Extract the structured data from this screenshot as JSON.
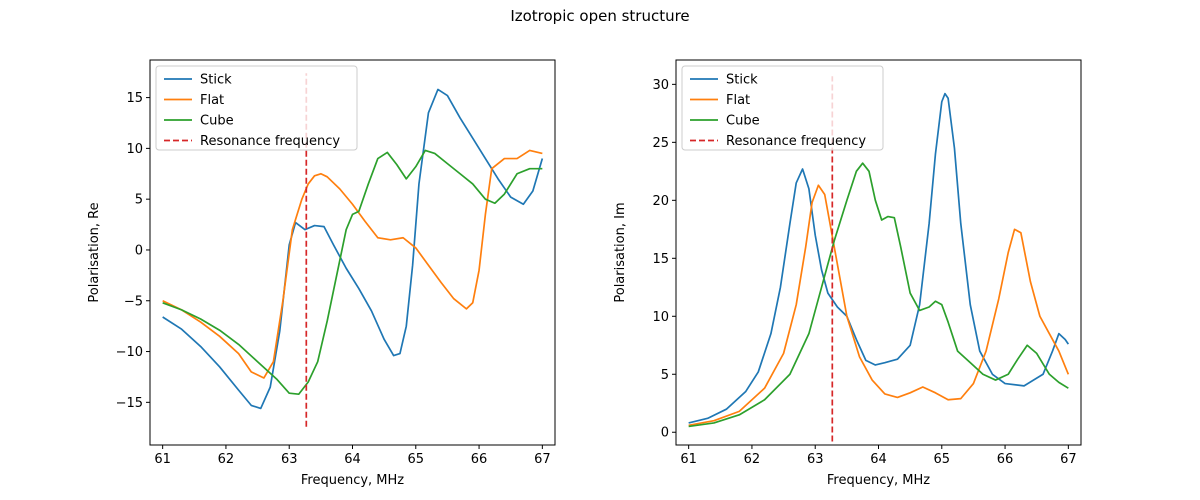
{
  "figure": {
    "title": "Izotropic open structure"
  },
  "chart_data": [
    {
      "type": "line",
      "xlabel": "Frequency, MHz",
      "ylabel": "Polarisation, Re",
      "xlim": [
        60.8,
        67.2
      ],
      "ylim": [
        -19.2,
        18.7
      ],
      "xticks": [
        61,
        62,
        63,
        64,
        65,
        66,
        67
      ],
      "yticks": [
        -15,
        -10,
        -5,
        0,
        5,
        10,
        15
      ],
      "grid": false,
      "legend": "top-left",
      "series": [
        {
          "name": "Stick",
          "color": "#1f77b4",
          "x": [
            61.0,
            61.3,
            61.6,
            61.9,
            62.2,
            62.4,
            62.55,
            62.7,
            62.85,
            63.0,
            63.1,
            63.25,
            63.4,
            63.55,
            63.7,
            63.9,
            64.1,
            64.3,
            64.5,
            64.65,
            64.75,
            64.85,
            64.95,
            65.05,
            65.2,
            65.35,
            65.5,
            65.7,
            65.9,
            66.1,
            66.3,
            66.5,
            66.7,
            66.85,
            67.0
          ],
          "y": [
            -6.6,
            -7.8,
            -9.5,
            -11.5,
            -13.8,
            -15.3,
            -15.6,
            -13.5,
            -8.0,
            0.5,
            2.7,
            2.0,
            2.4,
            2.3,
            0.5,
            -1.8,
            -3.8,
            -6.0,
            -8.8,
            -10.4,
            -10.2,
            -7.5,
            -1.5,
            6.5,
            13.5,
            15.8,
            15.2,
            13.0,
            11.0,
            9.0,
            7.0,
            5.2,
            4.5,
            5.8,
            9.0
          ]
        },
        {
          "name": "Flat",
          "color": "#ff7f0e",
          "x": [
            61.0,
            61.3,
            61.6,
            61.9,
            62.2,
            62.4,
            62.6,
            62.75,
            62.9,
            63.05,
            63.2,
            63.3,
            63.4,
            63.5,
            63.6,
            63.8,
            64.0,
            64.2,
            64.4,
            64.6,
            64.8,
            65.0,
            65.2,
            65.4,
            65.6,
            65.8,
            65.9,
            66.0,
            66.1,
            66.2,
            66.4,
            66.6,
            66.8,
            67.0
          ],
          "y": [
            -5.0,
            -5.9,
            -7.1,
            -8.5,
            -10.2,
            -12.0,
            -12.6,
            -11.0,
            -5.0,
            2.0,
            5.0,
            6.5,
            7.3,
            7.5,
            7.2,
            6.0,
            4.5,
            2.8,
            1.2,
            1.0,
            1.2,
            0.2,
            -1.5,
            -3.2,
            -4.8,
            -5.8,
            -5.2,
            -2.0,
            3.5,
            8.0,
            9.0,
            9.0,
            9.8,
            9.5
          ]
        },
        {
          "name": "Cube",
          "color": "#2ca02c",
          "x": [
            61.0,
            61.3,
            61.6,
            61.9,
            62.2,
            62.5,
            62.8,
            63.0,
            63.15,
            63.3,
            63.45,
            63.6,
            63.75,
            63.9,
            64.0,
            64.1,
            64.25,
            64.4,
            64.55,
            64.7,
            64.85,
            65.0,
            65.15,
            65.3,
            65.5,
            65.7,
            65.9,
            66.1,
            66.25,
            66.4,
            66.6,
            66.8,
            67.0
          ],
          "y": [
            -5.2,
            -5.9,
            -6.8,
            -7.9,
            -9.3,
            -11.0,
            -12.7,
            -14.1,
            -14.2,
            -13.0,
            -11.0,
            -7.0,
            -2.5,
            2.0,
            3.5,
            3.8,
            6.5,
            9.0,
            9.6,
            8.4,
            7.0,
            8.2,
            9.8,
            9.5,
            8.5,
            7.5,
            6.5,
            5.0,
            4.6,
            5.5,
            7.5,
            8.0,
            8.0
          ]
        },
        {
          "name": "Resonance frequency",
          "color": "#d62728",
          "dashed": true,
          "x": [
            63.27,
            63.27
          ],
          "y": [
            -17.4,
            17.4
          ]
        }
      ]
    },
    {
      "type": "line",
      "xlabel": "Frequency, MHz",
      "ylabel": "Polarisation, Im",
      "xlim": [
        60.8,
        67.2
      ],
      "ylim": [
        -1.1,
        32.1
      ],
      "xticks": [
        61,
        62,
        63,
        64,
        65,
        66,
        67
      ],
      "yticks": [
        0,
        5,
        10,
        15,
        20,
        25,
        30
      ],
      "grid": false,
      "legend": "top-left",
      "series": [
        {
          "name": "Stick",
          "color": "#1f77b4",
          "x": [
            61.0,
            61.3,
            61.6,
            61.9,
            62.1,
            62.3,
            62.45,
            62.6,
            62.7,
            62.8,
            62.9,
            63.0,
            63.1,
            63.2,
            63.35,
            63.5,
            63.65,
            63.8,
            63.95,
            64.1,
            64.3,
            64.5,
            64.65,
            64.8,
            64.9,
            65.0,
            65.05,
            65.1,
            65.2,
            65.3,
            65.45,
            65.6,
            65.8,
            66.0,
            66.3,
            66.6,
            66.75,
            66.85,
            66.95,
            67.0
          ],
          "y": [
            0.8,
            1.2,
            2.0,
            3.5,
            5.2,
            8.5,
            12.5,
            18.0,
            21.5,
            22.7,
            21.0,
            17.0,
            14.0,
            12.0,
            10.8,
            10.0,
            8.0,
            6.2,
            5.8,
            6.0,
            6.3,
            7.5,
            11.0,
            18.0,
            24.0,
            28.5,
            29.2,
            28.8,
            24.5,
            18.0,
            11.0,
            7.0,
            5.0,
            4.2,
            4.0,
            5.0,
            7.0,
            8.5,
            8.0,
            7.6
          ]
        },
        {
          "name": "Flat",
          "color": "#ff7f0e",
          "x": [
            61.0,
            61.4,
            61.8,
            62.2,
            62.5,
            62.7,
            62.85,
            62.95,
            63.05,
            63.15,
            63.3,
            63.5,
            63.7,
            63.9,
            64.1,
            64.3,
            64.5,
            64.7,
            64.9,
            65.1,
            65.3,
            65.5,
            65.7,
            65.9,
            66.05,
            66.15,
            66.25,
            66.4,
            66.55,
            66.7,
            66.85,
            67.0
          ],
          "y": [
            0.6,
            1.0,
            1.8,
            3.8,
            6.8,
            11.0,
            16.0,
            19.8,
            21.3,
            20.5,
            16.0,
            10.0,
            6.5,
            4.5,
            3.3,
            3.0,
            3.4,
            3.9,
            3.4,
            2.8,
            2.9,
            4.2,
            7.0,
            11.5,
            15.5,
            17.5,
            17.2,
            13.0,
            10.0,
            8.5,
            7.0,
            5.0
          ]
        },
        {
          "name": "Cube",
          "color": "#2ca02c",
          "x": [
            61.0,
            61.4,
            61.8,
            62.2,
            62.6,
            62.9,
            63.1,
            63.3,
            63.5,
            63.65,
            63.75,
            63.85,
            63.95,
            64.05,
            64.15,
            64.25,
            64.35,
            64.5,
            64.65,
            64.8,
            64.9,
            65.0,
            65.1,
            65.25,
            65.45,
            65.65,
            65.85,
            66.05,
            66.2,
            66.35,
            66.5,
            66.7,
            66.85,
            67.0
          ],
          "y": [
            0.5,
            0.8,
            1.5,
            2.8,
            5.0,
            8.5,
            12.5,
            16.5,
            20.0,
            22.5,
            23.2,
            22.5,
            20.0,
            18.3,
            18.6,
            18.5,
            16.0,
            12.0,
            10.5,
            10.8,
            11.3,
            11.0,
            9.5,
            7.0,
            6.0,
            5.0,
            4.5,
            5.0,
            6.3,
            7.5,
            6.8,
            5.0,
            4.3,
            3.8
          ]
        },
        {
          "name": "Resonance frequency",
          "color": "#d62728",
          "dashed": true,
          "x": [
            63.27,
            63.27
          ],
          "y": [
            -0.8,
            30.7
          ]
        }
      ]
    }
  ]
}
